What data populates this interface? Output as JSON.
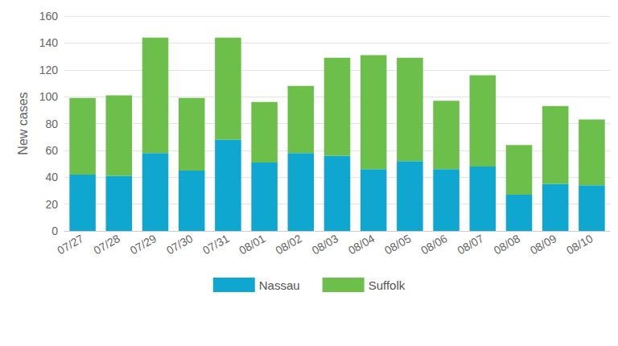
{
  "chart_data": {
    "type": "bar",
    "stacked": true,
    "grid": true,
    "legend": "bottom",
    "y_label": "New cases",
    "categories": [
      "07/27",
      "07/28",
      "07/29",
      "07/30",
      "07/31",
      "08/01",
      "08/02",
      "08/03",
      "08/04",
      "08/05",
      "08/06",
      "08/07",
      "08/08",
      "08/09",
      "08/10"
    ],
    "series": [
      {
        "name": "Nassau",
        "color": "#0fa6d0",
        "values": [
          42,
          41,
          58,
          45,
          68,
          51,
          58,
          56,
          46,
          52,
          46,
          48,
          27,
          35,
          34
        ]
      },
      {
        "name": "Suffolk",
        "color": "#6cbf4b",
        "values": [
          57,
          60,
          86,
          54,
          76,
          45,
          50,
          73,
          85,
          77,
          51,
          68,
          37,
          58,
          49
        ]
      }
    ],
    "ylim": [
      0,
      160
    ],
    "yticks": [
      0,
      20,
      40,
      60,
      80,
      100,
      120,
      140,
      160
    ]
  }
}
